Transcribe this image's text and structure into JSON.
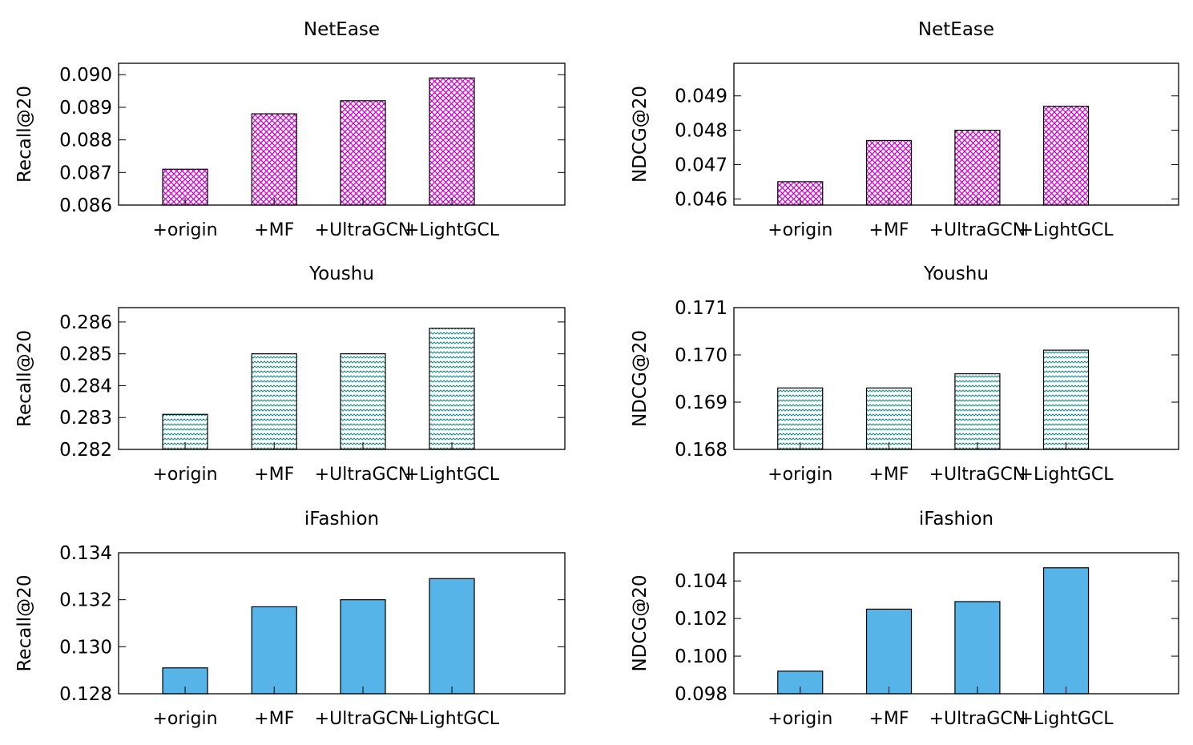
{
  "chart_data": [
    {
      "type": "bar",
      "title": "NetEase",
      "xlabel": "",
      "ylabel": "Recall@20",
      "categories": [
        "+origin",
        "+MF",
        "+UltraGCN",
        "+LightGCL"
      ],
      "values": [
        0.0871,
        0.0888,
        0.0892,
        0.0899
      ],
      "ylim": [
        0.086,
        0.09035
      ],
      "yticks": [
        "0.086",
        "0.087",
        "0.088",
        "0.089",
        "0.090"
      ],
      "pattern": "crosshatch",
      "color": "#cc00cc"
    },
    {
      "type": "bar",
      "title": "NetEase",
      "xlabel": "",
      "ylabel": "NDCG@20",
      "categories": [
        "+origin",
        "+MF",
        "+UltraGCN",
        "+LightGCL"
      ],
      "values": [
        0.0465,
        0.0477,
        0.048,
        0.0487
      ],
      "ylim": [
        0.04582,
        0.04995
      ],
      "yticks": [
        "0.046",
        "0.047",
        "0.048",
        "0.049"
      ],
      "pattern": "crosshatch",
      "color": "#cc00cc"
    },
    {
      "type": "bar",
      "title": "Youshu",
      "xlabel": "",
      "ylabel": "Recall@20",
      "categories": [
        "+origin",
        "+MF",
        "+UltraGCN",
        "+LightGCL"
      ],
      "values": [
        0.2831,
        0.285,
        0.285,
        0.2858
      ],
      "ylim": [
        0.282,
        0.28645
      ],
      "yticks": [
        "0.282",
        "0.283",
        "0.284",
        "0.285",
        "0.286"
      ],
      "pattern": "zigzag",
      "color": "#1a8a8a"
    },
    {
      "type": "bar",
      "title": "Youshu",
      "xlabel": "",
      "ylabel": "NDCG@20",
      "categories": [
        "+origin",
        "+MF",
        "+UltraGCN",
        "+LightGCL"
      ],
      "values": [
        0.1693,
        0.1693,
        0.1696,
        0.1701
      ],
      "ylim": [
        0.168,
        0.171
      ],
      "yticks": [
        "0.168",
        "0.169",
        "0.170",
        "0.171"
      ],
      "pattern": "zigzag",
      "color": "#1a8a8a"
    },
    {
      "type": "bar",
      "title": "iFashion",
      "xlabel": "",
      "ylabel": "Recall@20",
      "categories": [
        "+origin",
        "+MF",
        "+UltraGCN",
        "+LightGCL"
      ],
      "values": [
        0.1291,
        0.1317,
        0.132,
        0.1329
      ],
      "ylim": [
        0.128,
        0.134
      ],
      "yticks": [
        "0.128",
        "0.130",
        "0.132",
        "0.134"
      ],
      "pattern": "solid",
      "color": "#56b4e9"
    },
    {
      "type": "bar",
      "title": "iFashion",
      "xlabel": "",
      "ylabel": "NDCG@20",
      "categories": [
        "+origin",
        "+MF",
        "+UltraGCN",
        "+LightGCL"
      ],
      "values": [
        0.0992,
        0.1025,
        0.1029,
        0.1047
      ],
      "ylim": [
        0.098,
        0.1055
      ],
      "yticks": [
        "0.098",
        "0.100",
        "0.102",
        "0.104"
      ],
      "pattern": "solid",
      "color": "#56b4e9"
    }
  ]
}
